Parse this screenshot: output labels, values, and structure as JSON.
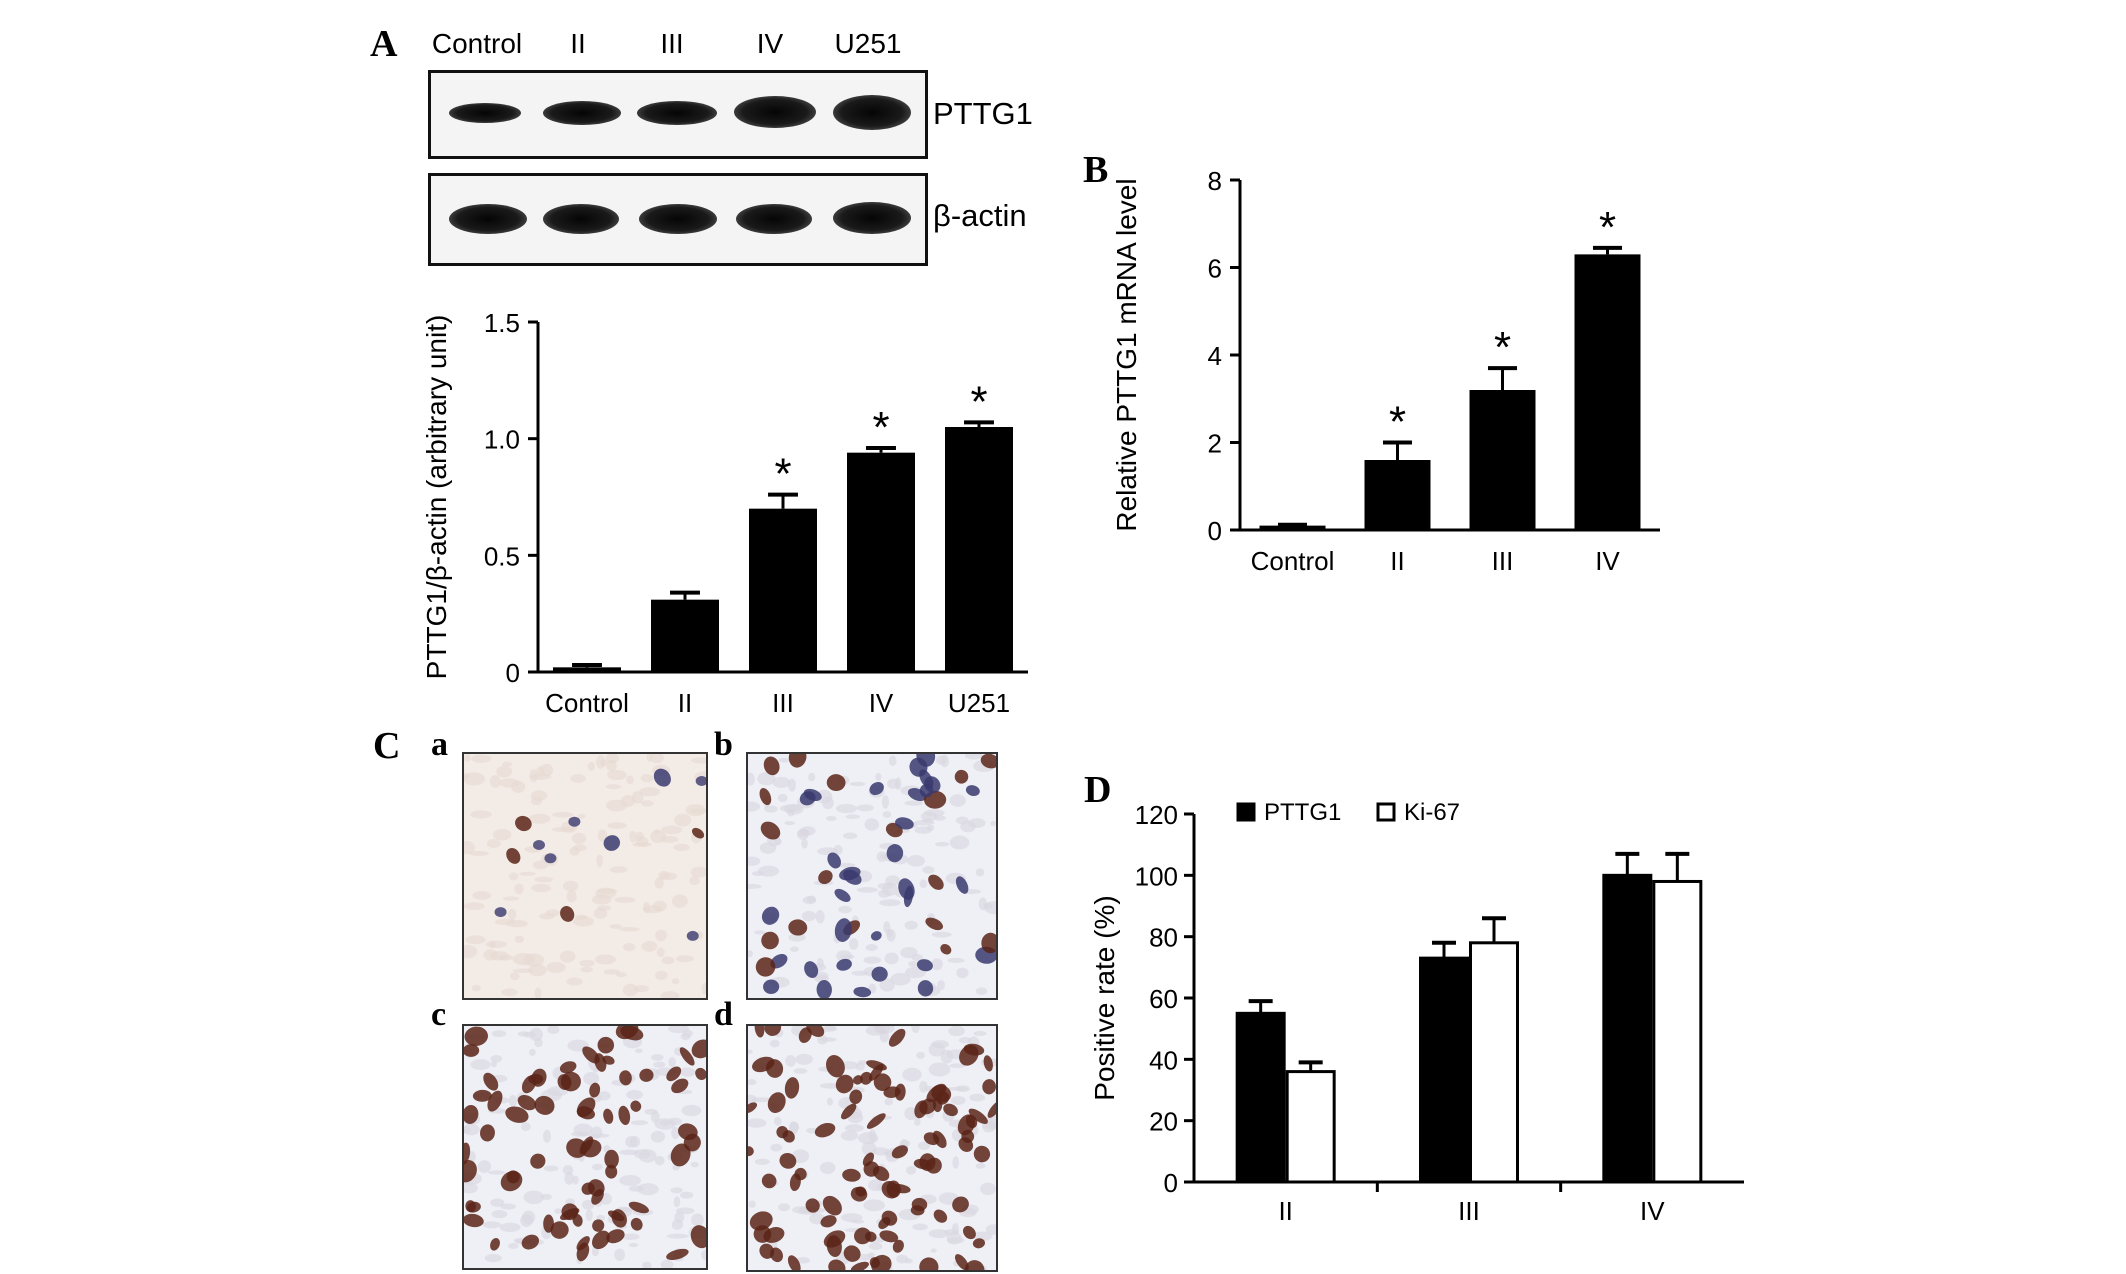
{
  "panels": {
    "A": "A",
    "B": "B",
    "C": "C",
    "D": "D",
    "sub": [
      "a",
      "b",
      "c",
      "d"
    ]
  },
  "western_blot": {
    "lanes": [
      "Control",
      "II",
      "III",
      "IV",
      "U251"
    ],
    "targets": [
      "PTTG1",
      "β-actin"
    ],
    "band_intensity": {
      "PTTG1": [
        0.55,
        0.7,
        0.72,
        0.88,
        0.95
      ],
      "beta_actin": [
        0.85,
        0.82,
        0.84,
        0.83,
        0.86
      ]
    }
  },
  "ihc": {
    "positive_density": [
      0.05,
      0.45,
      0.65,
      0.85
    ],
    "colors": {
      "background": "#f3ebe6",
      "brown": "#5a2418",
      "blue": "#3a3a6e"
    }
  },
  "chart_data": [
    {
      "id": "A",
      "type": "bar",
      "categories": [
        "Control",
        "II",
        "III",
        "IV",
        "U251"
      ],
      "values": [
        0.02,
        0.31,
        0.7,
        0.94,
        1.05
      ],
      "errors": [
        0.01,
        0.03,
        0.06,
        0.02,
        0.02
      ],
      "significance": [
        "",
        "",
        "*",
        "*",
        "*"
      ],
      "ylabel": "PTTG1/β-actin (arbitrary unit)",
      "xlabel": "",
      "ylim": [
        0,
        1.5
      ],
      "yticks": [
        "0",
        "0.5",
        "1.0",
        "1.5"
      ],
      "ytick_values": [
        0,
        0.5,
        1.0,
        1.5
      ]
    },
    {
      "id": "B",
      "type": "bar",
      "categories": [
        "Control",
        "II",
        "III",
        "IV"
      ],
      "values": [
        0.1,
        1.6,
        3.2,
        6.3
      ],
      "errors": [
        0.02,
        0.4,
        0.5,
        0.15
      ],
      "significance": [
        "",
        "*",
        "*",
        "*"
      ],
      "ylabel": "Relative PTTG1 mRNA level",
      "xlabel": "",
      "ylim": [
        0,
        8
      ],
      "yticks": [
        "0",
        "2",
        "4",
        "6",
        "8"
      ],
      "ytick_values": [
        0,
        2,
        4,
        6,
        8
      ]
    },
    {
      "id": "D",
      "type": "bar",
      "categories": [
        "II",
        "III",
        "IV"
      ],
      "series": [
        {
          "name": "PTTG1",
          "values": [
            55,
            73,
            100
          ],
          "errors": [
            4,
            5,
            7
          ],
          "color": "#000000"
        },
        {
          "name": "Ki-67",
          "values": [
            36,
            78,
            98
          ],
          "errors": [
            3,
            8,
            9
          ],
          "color": "#ffffff"
        }
      ],
      "ylabel": "Positive rate (%)",
      "xlabel": "",
      "ylim": [
        0,
        120
      ],
      "yticks": [
        "0",
        "20",
        "40",
        "60",
        "80",
        "100",
        "120"
      ],
      "ytick_values": [
        0,
        20,
        40,
        60,
        80,
        100,
        120
      ],
      "legend": "top-left"
    }
  ]
}
